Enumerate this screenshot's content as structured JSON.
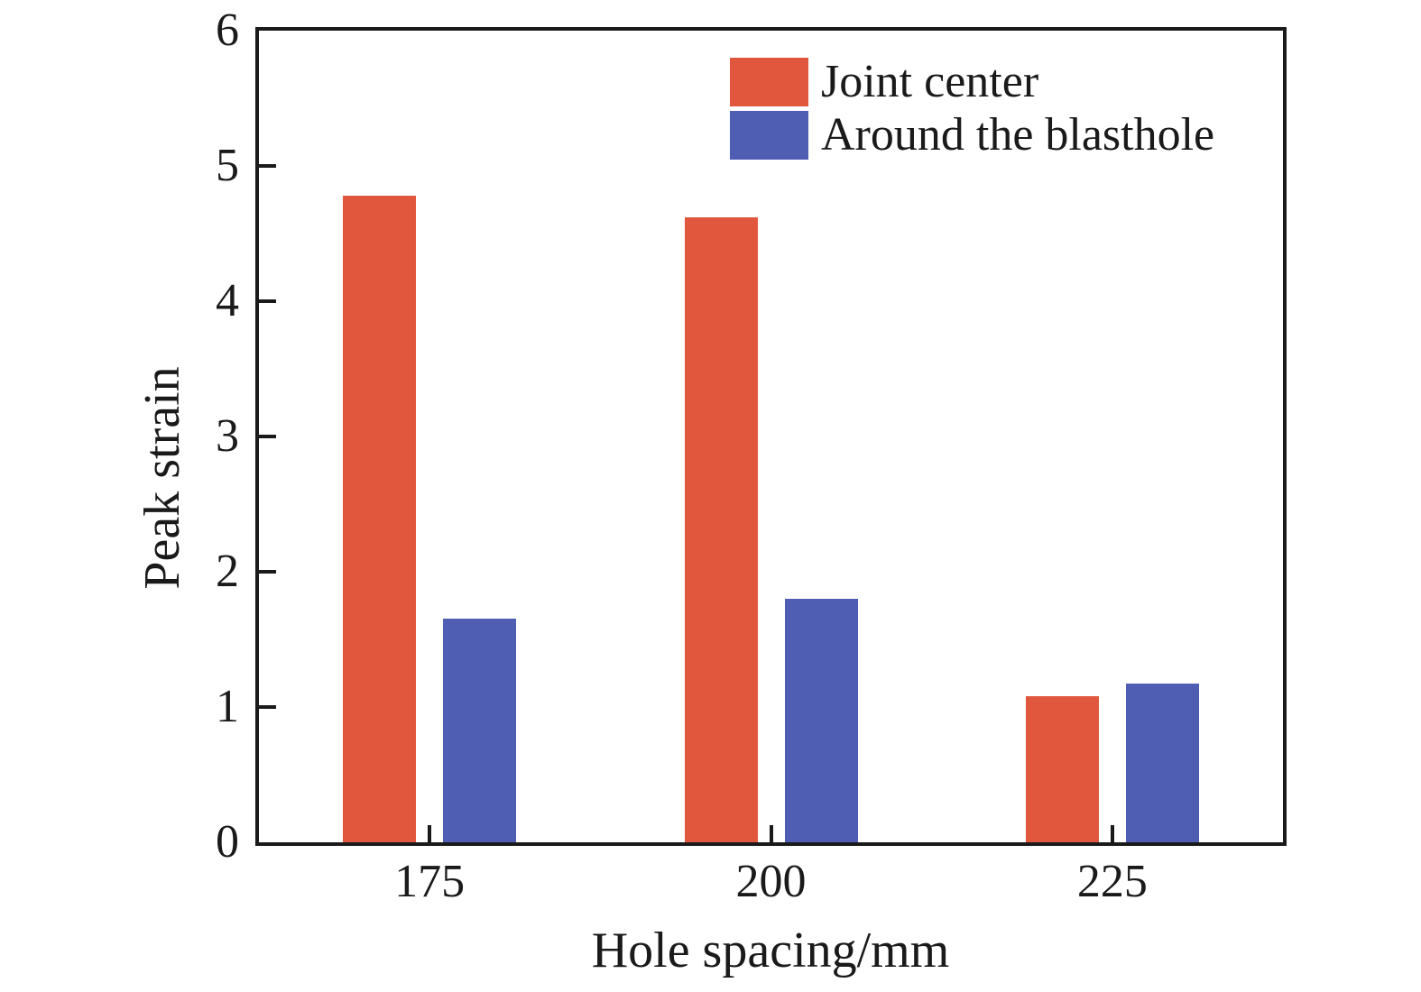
{
  "chart_data": {
    "type": "bar",
    "categories": [
      "175",
      "200",
      "225"
    ],
    "series": [
      {
        "name": "Joint center",
        "color": "#e0573d",
        "values": [
          4.78,
          4.62,
          1.08
        ]
      },
      {
        "name": "Around the blasthole",
        "color": "#4f5db3",
        "values": [
          1.65,
          1.8,
          1.17
        ]
      }
    ],
    "title": "",
    "xlabel": "Hole spacing/mm",
    "ylabel": "Peak strain",
    "ylim": [
      0,
      6
    ],
    "yticks": [
      0,
      1,
      2,
      3,
      4,
      5,
      6
    ],
    "grid": false,
    "legend_position": "top-right-inside",
    "axis_color": "#1a1a1a",
    "tick_style": "inward"
  }
}
